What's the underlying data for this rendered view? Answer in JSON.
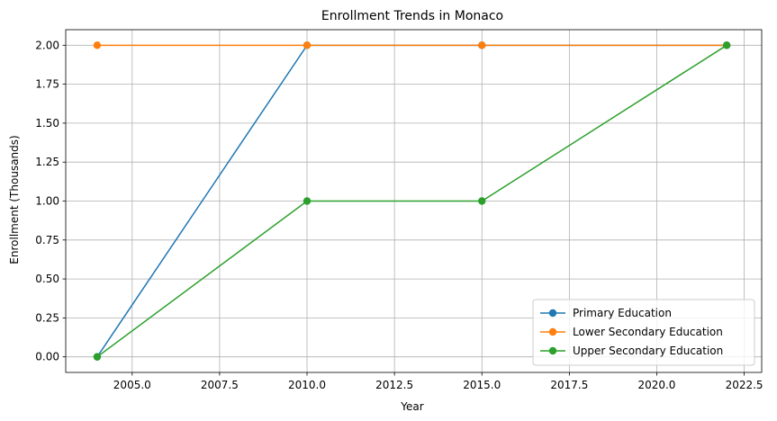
{
  "chart_data": {
    "type": "line",
    "title": "Enrollment Trends in Monaco",
    "xlabel": "Year",
    "ylabel": "Enrollment (Thousands)",
    "xlim": [
      2003.1,
      2023.0
    ],
    "ylim": [
      -0.1,
      2.1
    ],
    "x_ticks": [
      2005.0,
      2007.5,
      2010.0,
      2012.5,
      2015.0,
      2017.5,
      2020.0,
      2022.5
    ],
    "x_tick_labels": [
      "2005.0",
      "2007.5",
      "2010.0",
      "2012.5",
      "2015.0",
      "2017.5",
      "2020.0",
      "2022.5"
    ],
    "y_ticks": [
      0.0,
      0.25,
      0.5,
      0.75,
      1.0,
      1.25,
      1.5,
      1.75,
      2.0
    ],
    "y_tick_labels": [
      "0.00",
      "0.25",
      "0.50",
      "0.75",
      "1.00",
      "1.25",
      "1.50",
      "1.75",
      "2.00"
    ],
    "grid": true,
    "legend_position": "bottom-right",
    "x": [
      2004,
      2010,
      2015,
      2022
    ],
    "series": [
      {
        "name": "Primary Education",
        "color": "#1f77b4",
        "values": [
          0,
          2,
          2,
          2
        ]
      },
      {
        "name": "Lower Secondary Education",
        "color": "#ff7f0e",
        "values": [
          2,
          2,
          2,
          2
        ]
      },
      {
        "name": "Upper Secondary Education",
        "color": "#2ca02c",
        "values": [
          0,
          1,
          1,
          2
        ]
      }
    ]
  }
}
